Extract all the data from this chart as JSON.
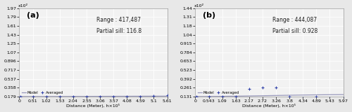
{
  "panel_a": {
    "label": "(a)",
    "range_text": "Range : 417,487",
    "sill_text": "Partial sill: 116.8",
    "xlim": [
      0,
      5.611
    ],
    "ylim": [
      0.179,
      1.971
    ],
    "xticks": [
      0,
      0.51,
      1.02,
      1.53,
      2.04,
      2.55,
      3.061,
      3.571,
      4.081,
      4.591,
      5.101,
      5.611
    ],
    "yticks": [
      0.179,
      0.358,
      0.537,
      0.717,
      0.896,
      1.075,
      1.254,
      1.433,
      1.612,
      1.791,
      1.971
    ],
    "exp_label": "x10²",
    "model_x": [
      0,
      0.3,
      0.6,
      0.9,
      1.2,
      1.5,
      1.8,
      2.1,
      2.4,
      2.7,
      3.0,
      3.3,
      3.6,
      3.9,
      4.2,
      4.5,
      4.8,
      5.1,
      5.4,
      5.611
    ],
    "model_y": [
      0.179,
      0.1793,
      0.1796,
      0.1799,
      0.1803,
      0.1807,
      0.1811,
      0.1815,
      0.182,
      0.1825,
      0.183,
      0.1835,
      0.184,
      0.1845,
      0.185,
      0.1855,
      0.186,
      0.1865,
      0.187,
      0.1873
    ],
    "data_x": [
      0.05,
      0.51,
      1.02,
      1.53,
      2.04,
      2.55,
      3.061,
      3.571,
      4.081,
      4.591,
      5.101,
      5.611
    ],
    "data_y": [
      0.179,
      0.1791,
      0.1793,
      0.18,
      0.1807,
      0.1813,
      0.182,
      0.1822,
      0.183,
      0.1783,
      0.1855,
      0.21
    ]
  },
  "panel_b": {
    "label": "(b)",
    "range_text": "Range : 444,087",
    "sill_text": "Partial sill: 0.928",
    "xlim": [
      0,
      5.975
    ],
    "ylim": [
      0.131,
      1.437
    ],
    "xticks": [
      0,
      0.543,
      1.086,
      1.63,
      2.173,
      2.716,
      3.259,
      3.802,
      4.345,
      4.889,
      5.432,
      5.975
    ],
    "yticks": [
      0.131,
      0.261,
      0.392,
      0.523,
      0.653,
      0.784,
      0.915,
      1.045,
      1.176,
      1.307,
      1.437
    ],
    "exp_label": "x10²",
    "model_x": [
      0,
      0.3,
      0.6,
      0.9,
      1.2,
      1.5,
      1.8,
      2.1,
      2.4,
      2.7,
      3.0,
      3.3,
      3.6,
      3.9,
      4.2,
      4.5,
      4.8,
      5.1,
      5.4,
      5.7,
      5.975
    ],
    "model_y": [
      0.131,
      0.1315,
      0.1323,
      0.1333,
      0.1346,
      0.136,
      0.1376,
      0.1393,
      0.1411,
      0.143,
      0.1449,
      0.1468,
      0.1487,
      0.1505,
      0.1522,
      0.1538,
      0.1553,
      0.1566,
      0.1578,
      0.1588,
      0.1595
    ],
    "data_x": [
      0.05,
      0.543,
      1.086,
      1.63,
      2.173,
      2.716,
      3.259,
      3.802,
      4.345,
      4.889,
      5.432,
      5.975
    ],
    "data_y": [
      0.1315,
      0.1318,
      0.1325,
      0.134,
      0.248,
      0.261,
      0.261,
      0.132,
      0.113,
      0.132,
      0.113,
      0.113
    ]
  },
  "bg_color": "#e8e8e8",
  "plot_bg": "#f2f2f2",
  "line_color": "#9999bb",
  "dot_color": "#3344aa",
  "text_color": "#222222",
  "grid_color": "#ffffff",
  "annotation_fontsize": 5.5,
  "tick_fontsize": 4.5,
  "label_fontsize": 4.5,
  "panel_label_fontsize": 8
}
